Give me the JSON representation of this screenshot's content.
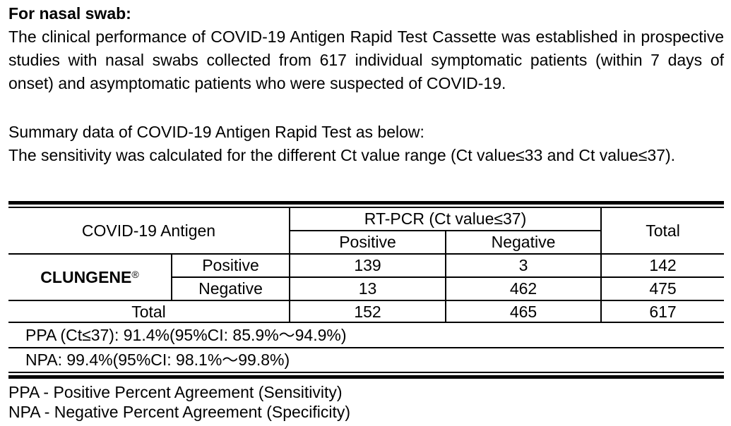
{
  "heading": "For nasal swab:",
  "paragraphs": {
    "intro": "The clinical performance of COVID-19 Antigen Rapid Test Cassette was established in prospective studies with nasal swabs collected from 617 individual symptomatic patients (within 7 days of onset) and asymptomatic patients who were suspected of COVID-19.",
    "summary": "Summary data of COVID-19 Antigen Rapid Test as below:",
    "sensitivity": "The sensitivity was calculated for the different Ct value range (Ct value≤33 and Ct value≤37)."
  },
  "table": {
    "corner_label": "COVID-19 Antigen",
    "group_header": "RT-PCR (Ct value≤37)",
    "col_positive": "Positive",
    "col_negative": "Negative",
    "col_total": "Total",
    "brand_name": "CLUNGENE",
    "brand_mark": "®",
    "row_positive_label": "Positive",
    "row_negative_label": "Negative",
    "row_total_label": "Total",
    "rows": {
      "positive": [
        "139",
        "3",
        "142"
      ],
      "negative": [
        "13",
        "462",
        "475"
      ],
      "total": [
        "152",
        "465",
        "617"
      ]
    }
  },
  "stats": {
    "ppa": "PPA (Ct≤37): 91.4%(95%CI: 85.9%～94.9%)",
    "npa": "NPA: 99.4%(95%CI: 98.1%～99.8%)"
  },
  "definitions": {
    "ppa": "PPA - Positive Percent Agreement (Sensitivity)",
    "npa": "NPA - Negative Percent Agreement (Specificity)"
  }
}
